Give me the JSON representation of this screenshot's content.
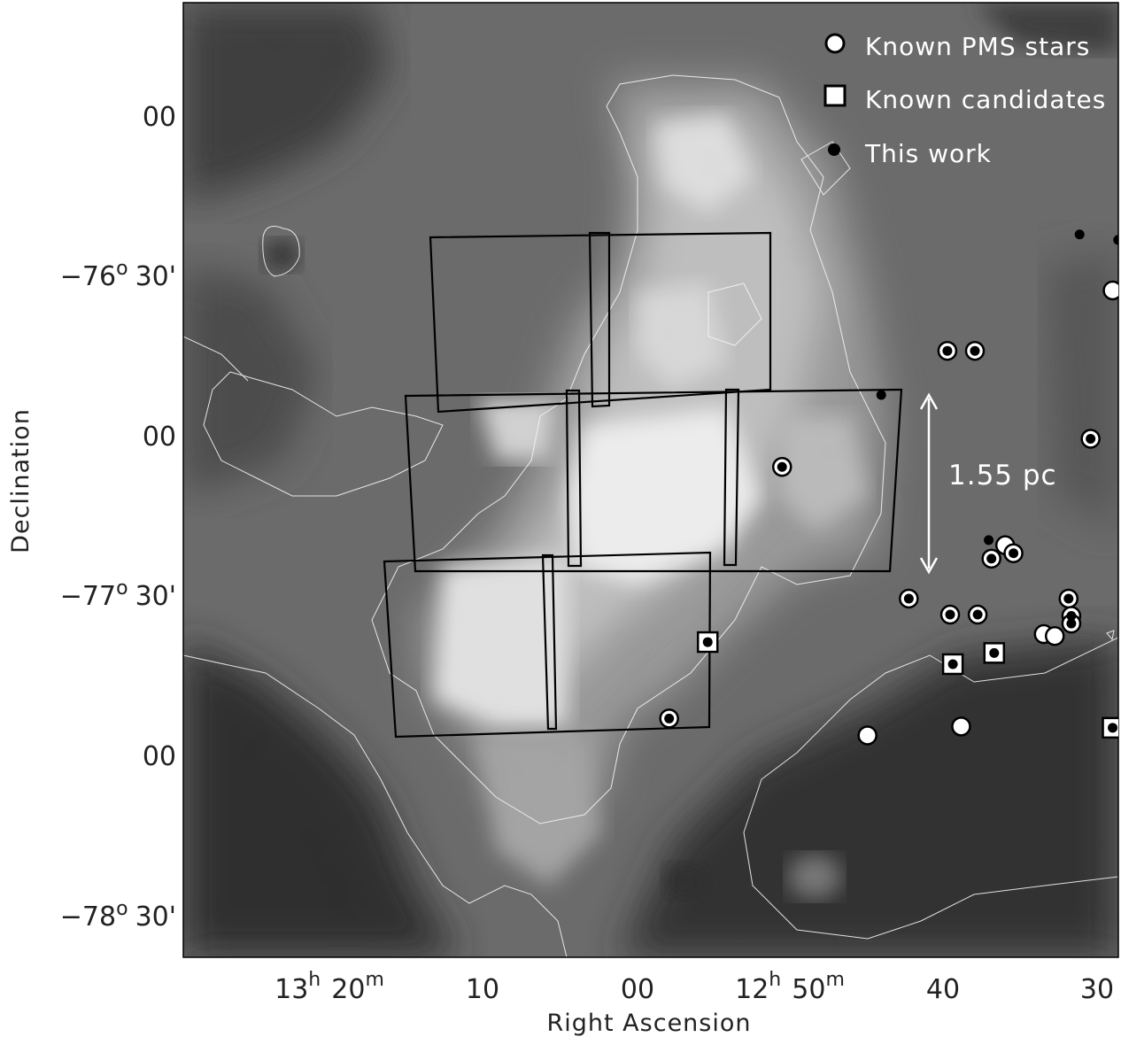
{
  "chart_data": {
    "type": "scatter",
    "xlabel": "Right Ascension",
    "ylabel": "Declination",
    "x_ticks": [
      {
        "h": "13",
        "m": "20",
        "text": "13h 20m",
        "major": true
      },
      {
        "text": "10",
        "major": false
      },
      {
        "text": "00",
        "major": false
      },
      {
        "h": "12",
        "m": "50",
        "text": "12h 50m",
        "major": true
      },
      {
        "text": "40",
        "major": false
      },
      {
        "text": "30",
        "major": false
      }
    ],
    "y_ticks": [
      {
        "text": "00",
        "major": false
      },
      {
        "deg": "−76",
        "min": "30'",
        "text": "−76o 30'",
        "major": true
      },
      {
        "text": "00",
        "major": false
      },
      {
        "deg": "−77",
        "min": "30'",
        "text": "−77o 30'",
        "major": true
      },
      {
        "text": "00",
        "major": false
      },
      {
        "deg": "−78",
        "min": "30'",
        "text": "−78o 30'",
        "major": true
      }
    ],
    "legend": {
      "placement": "top-right",
      "entries": [
        {
          "label": "Known PMS stars",
          "marker": "open-circle"
        },
        {
          "label": "Known candidates",
          "marker": "open-square"
        },
        {
          "label": "This work",
          "marker": "filled-dot"
        }
      ]
    },
    "scale_bar_label": "1.55 pc",
    "series": [
      {
        "name": "Known PMS stars",
        "marker": "open-circle",
        "points": [
          {
            "ra": 13.049,
            "dec": -76.547
          },
          {
            "ra": 13.109,
            "dec": -76.736
          },
          {
            "ra": 13.099,
            "dec": -76.736
          },
          {
            "ra": 13.037,
            "dec": -76.819
          },
          {
            "ra": 13.028,
            "dec": -76.819
          },
          {
            "ra": 12.992,
            "dec": -76.768
          },
          {
            "ra": 12.95,
            "dec": -76.711
          },
          {
            "ra": 12.945,
            "dec": -76.702
          },
          {
            "ra": 13.057,
            "dec": -77.011
          },
          {
            "ra": 13.022,
            "dec": -77.023
          },
          {
            "ra": 13.013,
            "dec": -77.033
          },
          {
            "ra": 12.977,
            "dec": -77.04
          },
          {
            "ra": 12.92,
            "dec": -77.207
          },
          {
            "ra": 12.919,
            "dec": -77.039
          },
          {
            "ra": 13.169,
            "dec": -77.099
          },
          {
            "ra": 13.088,
            "dec": -77.344
          },
          {
            "ra": 13.085,
            "dec": -77.369
          },
          {
            "ra": 13.093,
            "dec": -77.386
          },
          {
            "ra": 13.123,
            "dec": -77.511
          },
          {
            "ra": 13.108,
            "dec": -77.561
          },
          {
            "ra": 13.098,
            "dec": -77.561
          },
          {
            "ra": 13.065,
            "dec": -77.511
          },
          {
            "ra": 13.064,
            "dec": -77.565
          },
          {
            "ra": 13.064,
            "dec": -77.589
          },
          {
            "ra": 13.074,
            "dec": -77.622
          },
          {
            "ra": 13.07,
            "dec": -77.628
          },
          {
            "ra": 13.042,
            "dec": -77.842
          },
          {
            "ra": 13.21,
            "dec": -77.886
          },
          {
            "ra": 13.104,
            "dec": -77.911
          },
          {
            "ra": 13.138,
            "dec": -77.939
          },
          {
            "ra": 13.023,
            "dec": -77.825
          }
        ]
      },
      {
        "name": "Known candidates",
        "marker": "open-square",
        "points": [
          {
            "ra": 12.958,
            "dec": -76.611
          },
          {
            "ra": 12.913,
            "dec": -76.928
          },
          {
            "ra": 12.974,
            "dec": -77.131
          },
          {
            "ra": 12.997,
            "dec": -77.111
          },
          {
            "ra": 12.882,
            "dec": -77.222
          },
          {
            "ra": 13.031,
            "dec": -77.479
          },
          {
            "ra": 13.196,
            "dec": -77.647
          },
          {
            "ra": 13.092,
            "dec": -77.681
          },
          {
            "ra": 13.107,
            "dec": -77.716
          },
          {
            "ra": 13.049,
            "dec": -77.915
          }
        ]
      },
      {
        "name": "This work",
        "marker": "filled-dot",
        "points": [
          {
            "ra": 13.061,
            "dec": -76.372
          },
          {
            "ra": 13.047,
            "dec": -76.389
          },
          {
            "ra": 12.999,
            "dec": -76.379
          },
          {
            "ra": 13.133,
            "dec": -76.874
          },
          {
            "ra": 13.027,
            "dec": -77.007
          },
          {
            "ra": 13.024,
            "dec": -77.014
          },
          {
            "ra": 13.002,
            "dec": -77.064
          },
          {
            "ra": 13.094,
            "dec": -77.328
          },
          {
            "ra": 13.0,
            "dec": -77.405
          }
        ]
      }
    ]
  }
}
